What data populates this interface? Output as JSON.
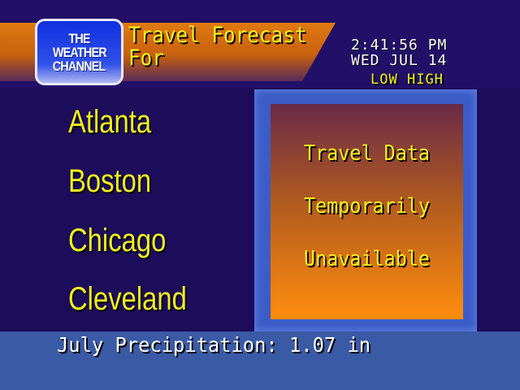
{
  "logo": {
    "line1": "THE",
    "line2": "WEATHER",
    "line3": "CHANNEL"
  },
  "header": {
    "title_line1": "Travel Forecast",
    "title_line2": "For",
    "time": "2:41:56 PM",
    "date": "WED JUL 14",
    "col_low": "LOW",
    "col_high": "HIGH"
  },
  "cities": [
    "Atlanta",
    "Boston",
    "Chicago",
    "Cleveland"
  ],
  "message": [
    "Travel Data",
    "Temporarily",
    "Unavailable"
  ],
  "ticker": "July Precipitation: 1.07 in",
  "colors": {
    "background": "#221068",
    "band": "#e07a10",
    "text": "#f0f020",
    "ticker_bar": "#3a5aa6"
  }
}
